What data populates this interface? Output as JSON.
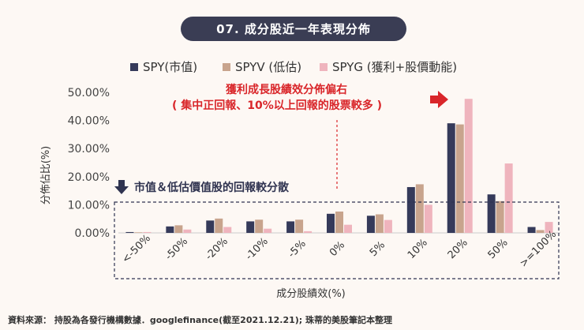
{
  "title": "07. 成分股近一年表現分佈",
  "chart_data": {
    "type": "bar",
    "categories": [
      "<-50%",
      "-50%",
      "-20%",
      "-10%",
      "-5%",
      "0%",
      "5%",
      "10%",
      "20%",
      "50%",
      ">=100%"
    ],
    "series": [
      {
        "name": "SPY(市值)",
        "color": "#353a5a",
        "values": [
          0.3,
          2.3,
          4.4,
          4.1,
          4.1,
          6.8,
          6.1,
          16.3,
          39.0,
          13.7,
          2.1
        ]
      },
      {
        "name": "SPYV (低估)",
        "color": "#c8a48d",
        "values": [
          0.2,
          2.7,
          5.1,
          4.7,
          4.7,
          7.6,
          6.6,
          17.3,
          38.6,
          11.3,
          1.0
        ]
      },
      {
        "name": "SPYG (獲利+股價動能)",
        "color": "#efb4bd",
        "values": [
          0.3,
          1.2,
          2.1,
          1.5,
          0.6,
          2.9,
          4.6,
          10.0,
          47.7,
          24.7,
          3.9
        ]
      }
    ],
    "yticks": [
      "0.00%",
      "10.00%",
      "20.00%",
      "30.00%",
      "40.00%",
      "50.00%"
    ],
    "ylim": [
      0,
      50
    ],
    "xlabel": "成分股績效(%)",
    "ylabel": "分佈佔比(%)",
    "grid": false,
    "legend": "top"
  },
  "annotations": {
    "right_line1": "獲利成長股績效分佈偏右",
    "right_line2": "( 集中正回報、10%以上回報的股票較多 )",
    "left_note": "市值＆低估價值股的回報較分散"
  },
  "footer": "資料來源： 持股為各發行機構數據．googlefinance(截至2021.12.21); 珠蒂的美股筆記本整理"
}
